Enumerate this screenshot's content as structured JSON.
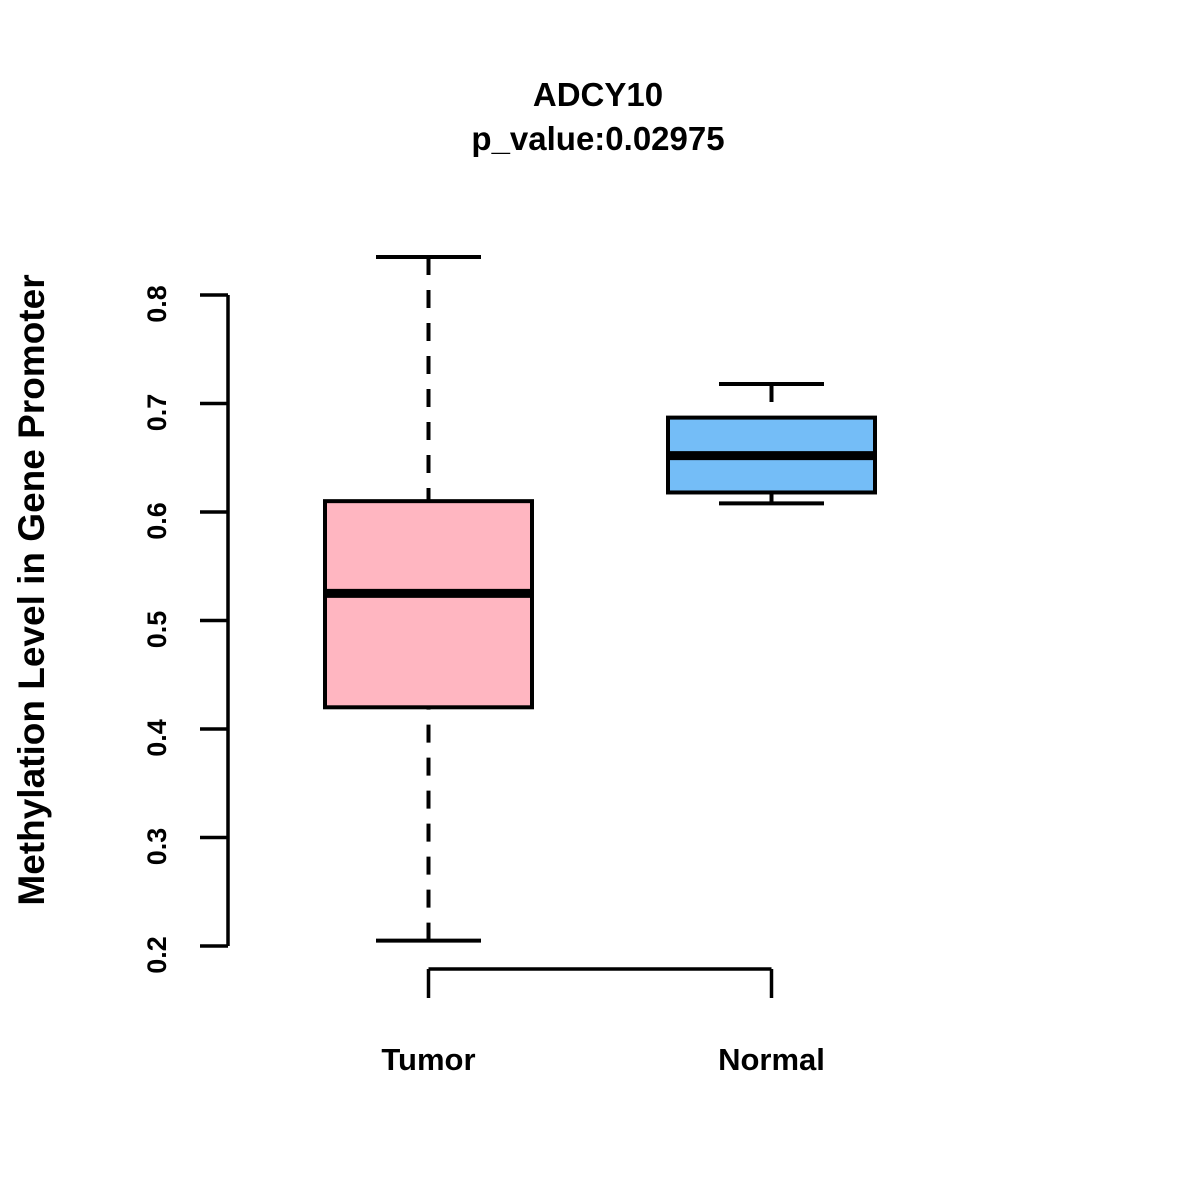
{
  "chart_data": {
    "type": "boxplot",
    "title": "ADCY10",
    "subtitle": "p_value:0.02975",
    "ylabel": "Methylation Level in Gene Promoter",
    "xlabel": "",
    "ylim": [
      0.2,
      0.8
    ],
    "y_ticks": [
      0.2,
      0.3,
      0.4,
      0.5,
      0.6,
      0.7,
      0.8
    ],
    "categories": [
      "Tumor",
      "Normal"
    ],
    "series": [
      {
        "name": "Tumor",
        "whisker_low": 0.205,
        "q1": 0.42,
        "median": 0.525,
        "q3": 0.61,
        "whisker_high": 0.835,
        "fill_color": "#FFB6C1"
      },
      {
        "name": "Normal",
        "whisker_low": 0.608,
        "q1": 0.618,
        "median": 0.652,
        "q3": 0.687,
        "whisker_high": 0.718,
        "fill_color": "#74BDF7"
      }
    ],
    "grid": false,
    "legend": false,
    "whisker_line_style": "dashed",
    "stroke_color": "#000000",
    "background_color": "#FFFFFF"
  }
}
